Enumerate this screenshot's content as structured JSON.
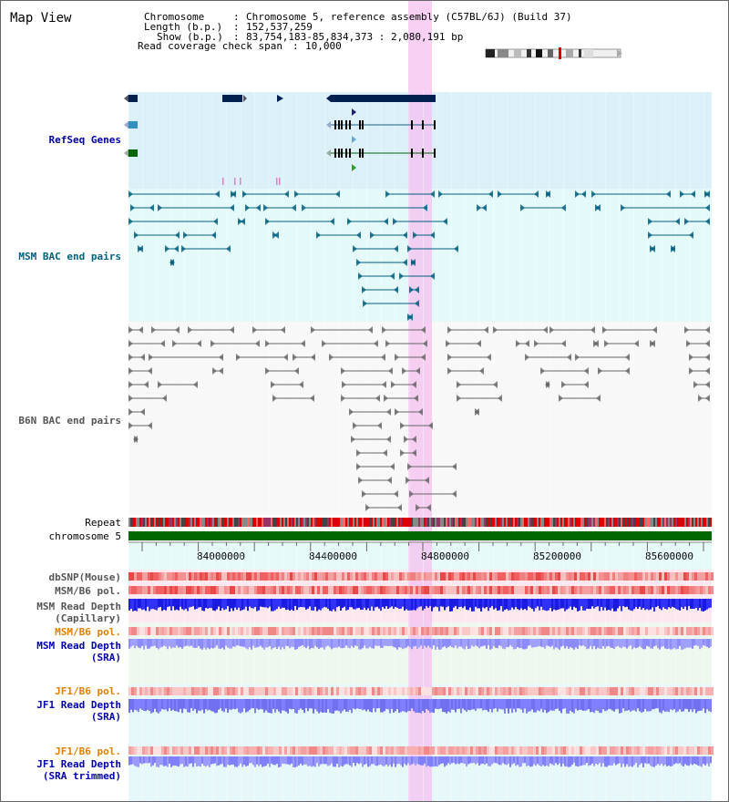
{
  "title": "Map View",
  "header": {
    "chromosome_label": "Chromosome",
    "chromosome_value": "Chromosome 5, reference assembly (C57BL/6J) (Build 37)",
    "length_label": "Length (b.p.)",
    "length_value": "152,537,259",
    "show_label": "Show (b.p.)",
    "show_value": "83,754,183-85,834,373 : 2,080,191 bp",
    "coverage_label": "Read coverage check span",
    "coverage_value": "10,000"
  },
  "tracks": {
    "refseq": "RefSeq Genes",
    "msm_bac": "MSM BAC end pairs",
    "b6n_bac": "B6N BAC end pairs",
    "repeat": "Repeat",
    "chromosome": "chromosome 5",
    "dbsnp": "dbSNP(Mouse)",
    "msm_b6_pol_1": "MSM/B6 pol.",
    "msm_depth_cap": "MSM Read Depth\n(Capillary)",
    "msm_b6_pol_2": "MSM/B6 pol.",
    "msm_depth_sra": "MSM Read Depth\n(SRA)",
    "jf1_b6_pol_1": "JF1/B6 pol.",
    "jf1_depth_sra": "JF1 Read Depth\n(SRA)",
    "jf1_b6_pol_2": "JF1/B6 pol.",
    "jf1_depth_trim": "JF1 Read Depth\n(SRA trimmed)"
  },
  "axis": {
    "ticks": [
      "84000000",
      "84400000",
      "84800000",
      "85200000",
      "85600000"
    ]
  },
  "colors": {
    "refseq_label": "#0000aa",
    "msm_label": "#006080",
    "b6n_label": "#555555",
    "pol_orange": "#e08000",
    "depth_blue": "#0000aa",
    "highlight": "#f4c0f0",
    "chromosome_green": "#006600"
  }
}
